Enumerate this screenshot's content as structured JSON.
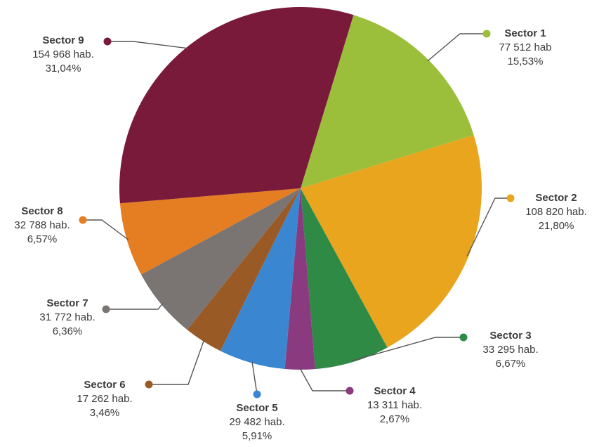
{
  "chart_data": {
    "type": "pie",
    "slices": [
      {
        "label": "Sector 1",
        "population": "77 512 hab",
        "percent": "15,53%",
        "value": 15.53,
        "color": "#9bbf3a",
        "label_color": "#8bb030"
      },
      {
        "label": "Sector 2",
        "population": "108 820 hab.",
        "percent": "21,80%",
        "value": 21.8,
        "color": "#eaa51e",
        "label_color": "#e49a1a"
      },
      {
        "label": "Sector 3",
        "population": "33 295 hab.",
        "percent": "6,67%",
        "value": 6.67,
        "color": "#2f8a45",
        "label_color": "#3a3a3a"
      },
      {
        "label": "Sector 4",
        "population": "13 311 hab.",
        "percent": "2,67%",
        "value": 2.67,
        "color": "#8a3a7e",
        "label_color": "#3a3a3a"
      },
      {
        "label": "Sector 5",
        "population": "29 482 hab.",
        "percent": "5,91%",
        "value": 5.91,
        "color": "#3a86d0",
        "label_color": "#2f7fc8"
      },
      {
        "label": "Sector 6",
        "population": "17 262 hab.",
        "percent": "3,46%",
        "value": 3.46,
        "color": "#9a5a26",
        "label_color": "#3a3a3a"
      },
      {
        "label": "Sector 7",
        "population": "31 772 hab.",
        "percent": "6,36%",
        "value": 6.36,
        "color": "#7a7472",
        "label_color": "#3a3a3a"
      },
      {
        "label": "Sector 8",
        "population": "32 788 hab.",
        "percent": "6,57%",
        "value": 6.57,
        "color": "#e57d22",
        "label_color": "#e06f1a"
      },
      {
        "label": "Sector 9",
        "population": "154 968 hab.",
        "percent": "31,04%",
        "value": 31.04,
        "color": "#7a1a3a",
        "label_color": "#3a3a3a"
      }
    ]
  }
}
